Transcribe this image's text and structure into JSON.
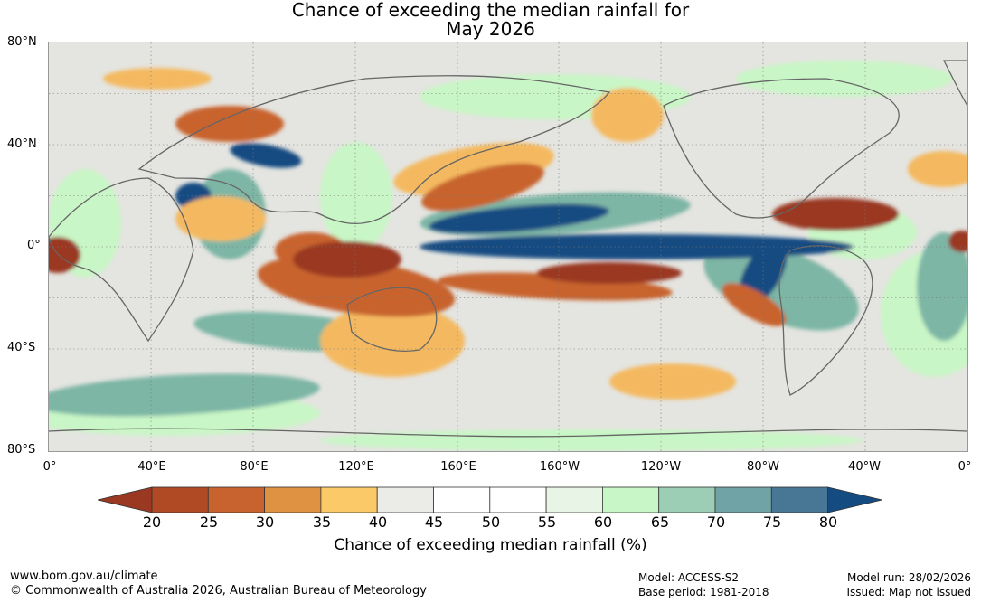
{
  "title": {
    "line1": "Chance of exceeding the median rainfall for",
    "line2": "May 2026"
  },
  "latitude_labels": [
    "80°N",
    "40°N",
    "0°",
    "40°S",
    "80°S"
  ],
  "longitude_labels": [
    "0°",
    "40°E",
    "80°E",
    "120°E",
    "160°E",
    "160°W",
    "120°W",
    "80°W",
    "40°W",
    "0°"
  ],
  "colorbar": {
    "ticks": [
      "20",
      "25",
      "30",
      "35",
      "40",
      "45",
      "50",
      "55",
      "60",
      "65",
      "70",
      "75",
      "80"
    ],
    "colors": [
      "#b04a25",
      "#c8632f",
      "#e09243",
      "#fbc967",
      "#ebebe7",
      "#ffffff",
      "#ffffff",
      "#e8f5e6",
      "#c9f6c6",
      "#9ccdb5",
      "#6fa3a5",
      "#477794"
    ],
    "low_extend_color": "#9a3822",
    "high_extend_color": "#144c82",
    "label": "Chance of exceeding median rainfall (%)"
  },
  "map_colors": {
    "dry_strong": "#9a3822",
    "dry": "#c8632f",
    "dry_weak": "#f4b960",
    "neutral": "#e4e4e0",
    "wet_weak": "#c9f6c6",
    "wet": "#7db6a5",
    "wet_strong": "#144c82",
    "coast": "#666666"
  },
  "footer": {
    "url": "www.bom.gov.au/climate",
    "copyright": "© Commonwealth of Australia 2026, Australian Bureau of Meteorology",
    "model": "Model: ACCESS-S2",
    "base_period": "Base period: 1981-2018",
    "model_run": "Model run: 28/02/2026",
    "issued": "Issued: Map not issued"
  }
}
